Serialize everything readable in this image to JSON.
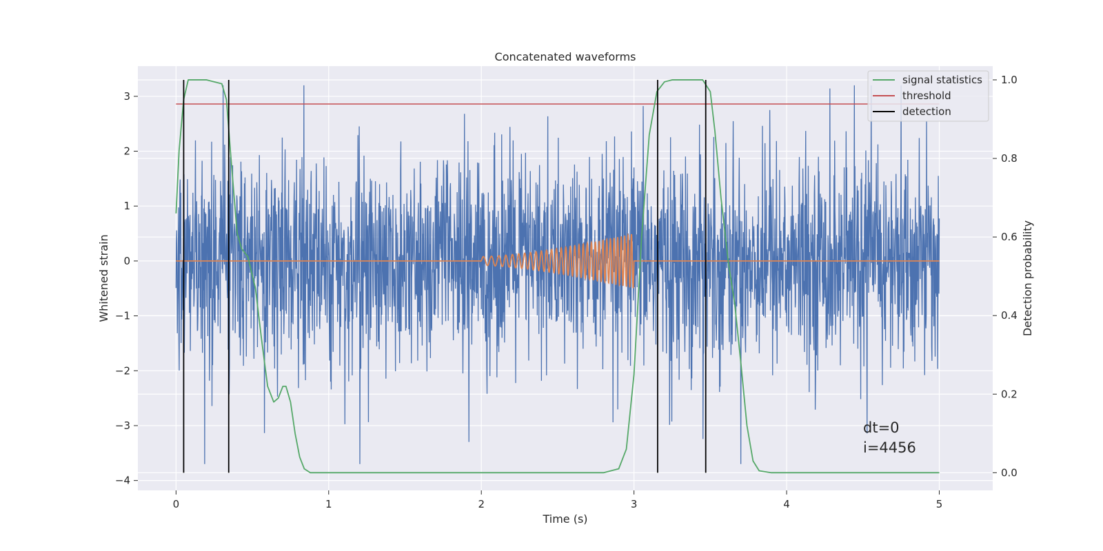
{
  "chart_data": {
    "type": "line",
    "title": "Concatenated waveforms",
    "xlabel": "Time (s)",
    "ylabel": "Whitened strain",
    "ylabel_right": "Detection probability",
    "xlim": [
      -0.25,
      5.35
    ],
    "ylim": [
      -4.18,
      3.55
    ],
    "ylim_right": [
      -0.045,
      1.035
    ],
    "x_ticks": [
      0,
      1,
      2,
      3,
      4,
      5
    ],
    "y_ticks": [
      -4,
      -3,
      -2,
      -1,
      0,
      1,
      2,
      3
    ],
    "y_ticks_right": [
      0.0,
      0.2,
      0.4,
      0.6,
      0.8,
      1.0
    ],
    "x_tick_labels": [
      "0",
      "1",
      "2",
      "3",
      "4",
      "5"
    ],
    "y_tick_labels": [
      "−4",
      "−3",
      "−2",
      "−1",
      "0",
      "1",
      "2",
      "3"
    ],
    "y_tick_labels_right": [
      "0.0",
      "0.2",
      "0.4",
      "0.6",
      "0.8",
      "1.0"
    ],
    "grid": true,
    "background": "#eaeaf2",
    "legend_position": "top-right",
    "series": [
      {
        "name": "",
        "axis": "left",
        "color": "#4c72b0",
        "kind": "noise",
        "x_range": [
          0,
          5
        ],
        "typical_amplitude": 0.9,
        "peak_max": 3.2,
        "peak_min": -3.7
      },
      {
        "name": "",
        "axis": "left",
        "color": "#dd8452",
        "kind": "chirp",
        "x_range": [
          0,
          5
        ],
        "chirp_start": 2.0,
        "chirp_end": 3.0,
        "amplitude_start": 0.08,
        "amplitude_end": 0.5
      },
      {
        "name": "signal statistics",
        "axis": "right",
        "color": "#55a868",
        "x": [
          0.0,
          0.02,
          0.05,
          0.08,
          0.1,
          0.15,
          0.2,
          0.3,
          0.33,
          0.36,
          0.4,
          0.43,
          0.47,
          0.52,
          0.56,
          0.6,
          0.64,
          0.67,
          0.7,
          0.72,
          0.75,
          0.78,
          0.81,
          0.84,
          0.88,
          0.95,
          1.2,
          1.7,
          2.3,
          2.8,
          2.9,
          2.95,
          3.0,
          3.05,
          3.1,
          3.15,
          3.2,
          3.25,
          3.3,
          3.45,
          3.5,
          3.53,
          3.57,
          3.62,
          3.66,
          3.7,
          3.74,
          3.78,
          3.82,
          3.9,
          4.3,
          5.0
        ],
        "y": [
          0.66,
          0.82,
          0.95,
          1.0,
          1.0,
          1.0,
          1.0,
          0.99,
          0.95,
          0.8,
          0.61,
          0.57,
          0.55,
          0.47,
          0.34,
          0.22,
          0.18,
          0.19,
          0.22,
          0.22,
          0.18,
          0.1,
          0.04,
          0.01,
          0.0,
          0.0,
          0.0,
          0.0,
          0.0,
          0.0,
          0.01,
          0.06,
          0.25,
          0.6,
          0.86,
          0.97,
          0.995,
          1.0,
          1.0,
          1.0,
          0.97,
          0.87,
          0.7,
          0.53,
          0.43,
          0.28,
          0.12,
          0.03,
          0.005,
          0.0,
          0.0,
          0.0
        ]
      },
      {
        "name": "threshold",
        "axis": "left",
        "color": "#c44e52",
        "x": [
          0,
          5
        ],
        "y": [
          2.86,
          2.86
        ]
      },
      {
        "name": "detection",
        "axis": "right",
        "color": "#000000",
        "kind": "vlines",
        "x": [
          0.05,
          0.345,
          3.155,
          3.47
        ],
        "y_range": [
          0.0,
          1.0
        ]
      }
    ],
    "annotations": [
      "dt=0",
      "i=4456"
    ]
  }
}
